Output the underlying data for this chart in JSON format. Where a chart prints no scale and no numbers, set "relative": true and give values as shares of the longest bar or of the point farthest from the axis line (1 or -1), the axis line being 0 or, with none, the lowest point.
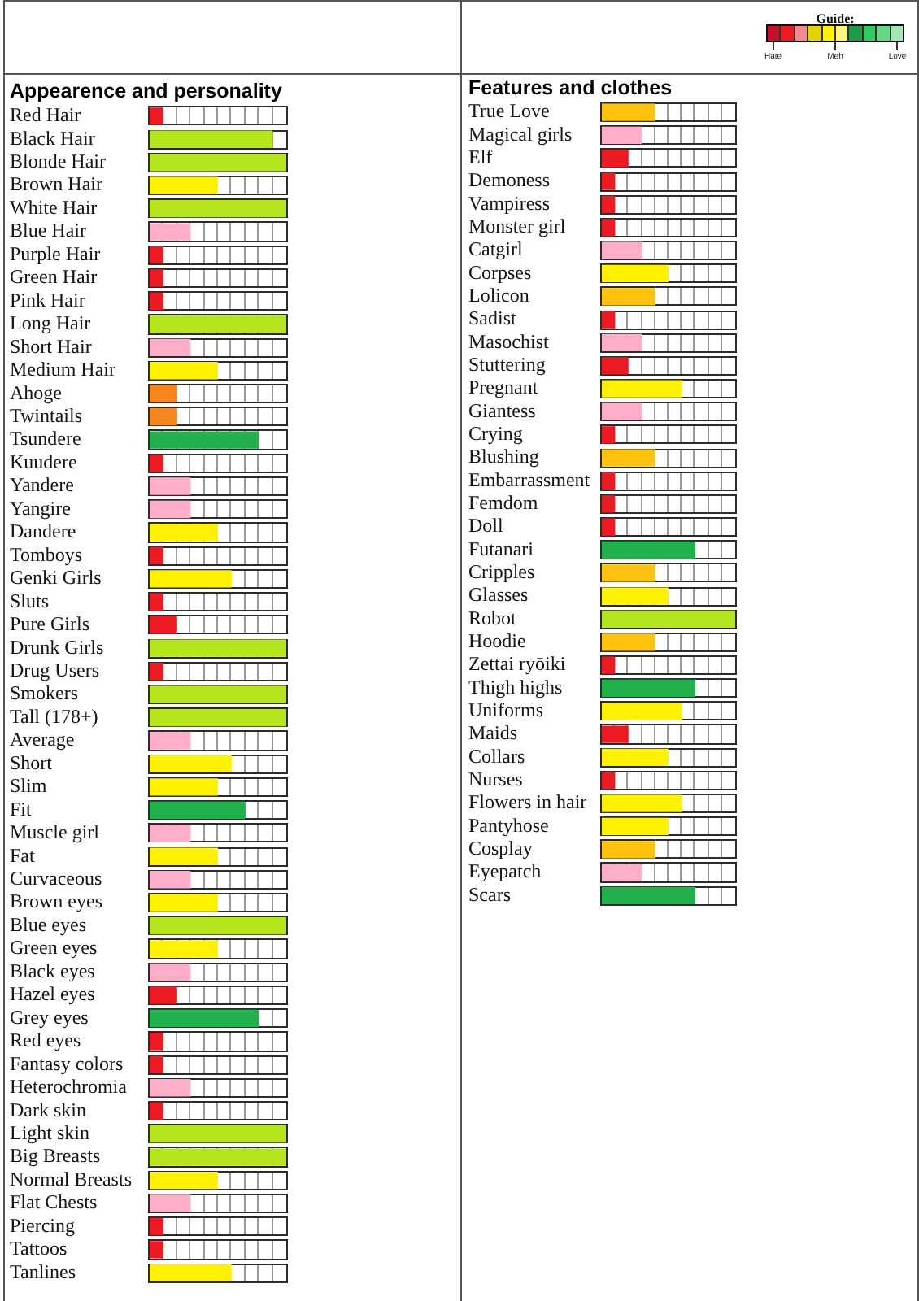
{
  "chart_data": [
    {
      "type": "other",
      "title": "Guide:",
      "colors": [
        "#c8102e",
        "#ed1c24",
        "#f4898f",
        "#e2d200",
        "#fff200",
        "#fff47a",
        "#1f9a48",
        "#2ecc5f",
        "#63d982",
        "#9fe8b3"
      ],
      "annotations": [
        "Hate",
        "Meh",
        "Love"
      ]
    },
    {
      "type": "bar",
      "orientation": "horizontal",
      "relative": true,
      "title": "Appearence and personality",
      "categories": [
        "Red Hair",
        "Black Hair",
        "Blonde Hair",
        "Brown Hair",
        "White Hair",
        "Blue Hair",
        "Purple Hair",
        "Green Hair",
        "Pink Hair",
        "Long Hair",
        "Short Hair",
        "Medium Hair",
        "Ahoge",
        "Twintails",
        "Tsundere",
        "Kuudere",
        "Yandere",
        "Yangire",
        "Dandere",
        "Tomboys",
        "Genki Girls",
        "Sluts",
        "Pure Girls",
        "Drunk Girls",
        "Drug Users",
        "Smokers",
        "Tall (178+)",
        "Average",
        "Short",
        "Slim",
        "Fit",
        "Muscle girl",
        "Fat",
        "Curvaceous",
        "Brown eyes",
        "Blue eyes",
        "Green eyes",
        "Black eyes",
        "Hazel eyes",
        "Grey eyes",
        "Red eyes",
        "Fantasy colors",
        "Heterochromia",
        "Dark skin",
        "Light skin",
        "Big Breasts",
        "Normal Breasts",
        "Flat Chests",
        "Piercing",
        "Tattoos",
        "Tanlines"
      ],
      "values": [
        0.1,
        0.9,
        1,
        0.5,
        1,
        0.3,
        0.1,
        0.1,
        0.1,
        1,
        0.3,
        0.5,
        0.2,
        0.2,
        0.8,
        0.1,
        0.3,
        0.3,
        0.5,
        0.1,
        0.6,
        0.1,
        0.2,
        1,
        0.1,
        1,
        1,
        0.3,
        0.6,
        0.5,
        0.7,
        0.3,
        0.5,
        0.3,
        0.5,
        1,
        0.5,
        0.3,
        0.2,
        0.8,
        0.1,
        0.1,
        0.3,
        0.1,
        1,
        1,
        0.5,
        0.3,
        0.1,
        0.1,
        0.6
      ],
      "colors": [
        "#ed1c24",
        "#b5e61d",
        "#b5e61d",
        "#fff200",
        "#b5e61d",
        "#ffaec9",
        "#ed1c24",
        "#ed1c24",
        "#ed1c24",
        "#b5e61d",
        "#ffaec9",
        "#fff200",
        "#f7861c",
        "#f7861c",
        "#22b14c",
        "#ed1c24",
        "#ffaec9",
        "#ffaec9",
        "#fff200",
        "#ed1c24",
        "#fff200",
        "#ed1c24",
        "#ed1c24",
        "#b5e61d",
        "#ed1c24",
        "#b5e61d",
        "#b5e61d",
        "#ffaec9",
        "#fff200",
        "#fff200",
        "#22b14c",
        "#ffaec9",
        "#fff200",
        "#ffaec9",
        "#fff200",
        "#b5e61d",
        "#fff200",
        "#ffaec9",
        "#ed1c24",
        "#22b14c",
        "#ed1c24",
        "#ed1c24",
        "#ffaec9",
        "#ed1c24",
        "#b5e61d",
        "#b5e61d",
        "#fff200",
        "#ffaec9",
        "#ed1c24",
        "#ed1c24",
        "#fff200"
      ]
    },
    {
      "type": "bar",
      "orientation": "horizontal",
      "relative": true,
      "title": "Features and clothes",
      "categories": [
        "True Love",
        "Magical girls",
        "Elf",
        "Demoness",
        "Vampiress",
        "Monster girl",
        "Catgirl",
        "Corpses",
        "Lolicon",
        "Sadist",
        "Masochist",
        "Stuttering",
        "Pregnant",
        "Giantess",
        "Crying",
        "Blushing",
        "Embarrassment",
        "Femdom",
        "Doll",
        "Futanari",
        "Cripples",
        "Glasses",
        "Robot",
        "Hoodie",
        "Zettai ryōiki",
        "Thigh highs",
        "Uniforms",
        "Maids",
        "Collars",
        "Nurses",
        "Flowers in hair",
        "Pantyhose",
        "Cosplay",
        "Eyepatch",
        "Scars"
      ],
      "values": [
        0.4,
        0.3,
        0.2,
        0.1,
        0.1,
        0.1,
        0.3,
        0.5,
        0.4,
        0.1,
        0.3,
        0.2,
        0.6,
        0.3,
        0.1,
        0.4,
        0.1,
        0.1,
        0.1,
        0.7,
        0.4,
        0.5,
        1,
        0.4,
        0.1,
        0.7,
        0.6,
        0.2,
        0.5,
        0.1,
        0.6,
        0.5,
        0.4,
        0.3,
        0.7
      ],
      "colors": [
        "#ffc20e",
        "#ffaec9",
        "#ed1c24",
        "#ed1c24",
        "#ed1c24",
        "#ed1c24",
        "#ffaec9",
        "#fff200",
        "#ffc20e",
        "#ed1c24",
        "#ffaec9",
        "#ed1c24",
        "#fff200",
        "#ffaec9",
        "#ed1c24",
        "#ffc20e",
        "#ed1c24",
        "#ed1c24",
        "#ed1c24",
        "#22b14c",
        "#ffc20e",
        "#fff200",
        "#b5e61d",
        "#ffc20e",
        "#ed1c24",
        "#22b14c",
        "#fff200",
        "#ed1c24",
        "#fff200",
        "#ed1c24",
        "#fff200",
        "#fff200",
        "#ffc20e",
        "#ffaec9",
        "#22b14c"
      ]
    }
  ]
}
